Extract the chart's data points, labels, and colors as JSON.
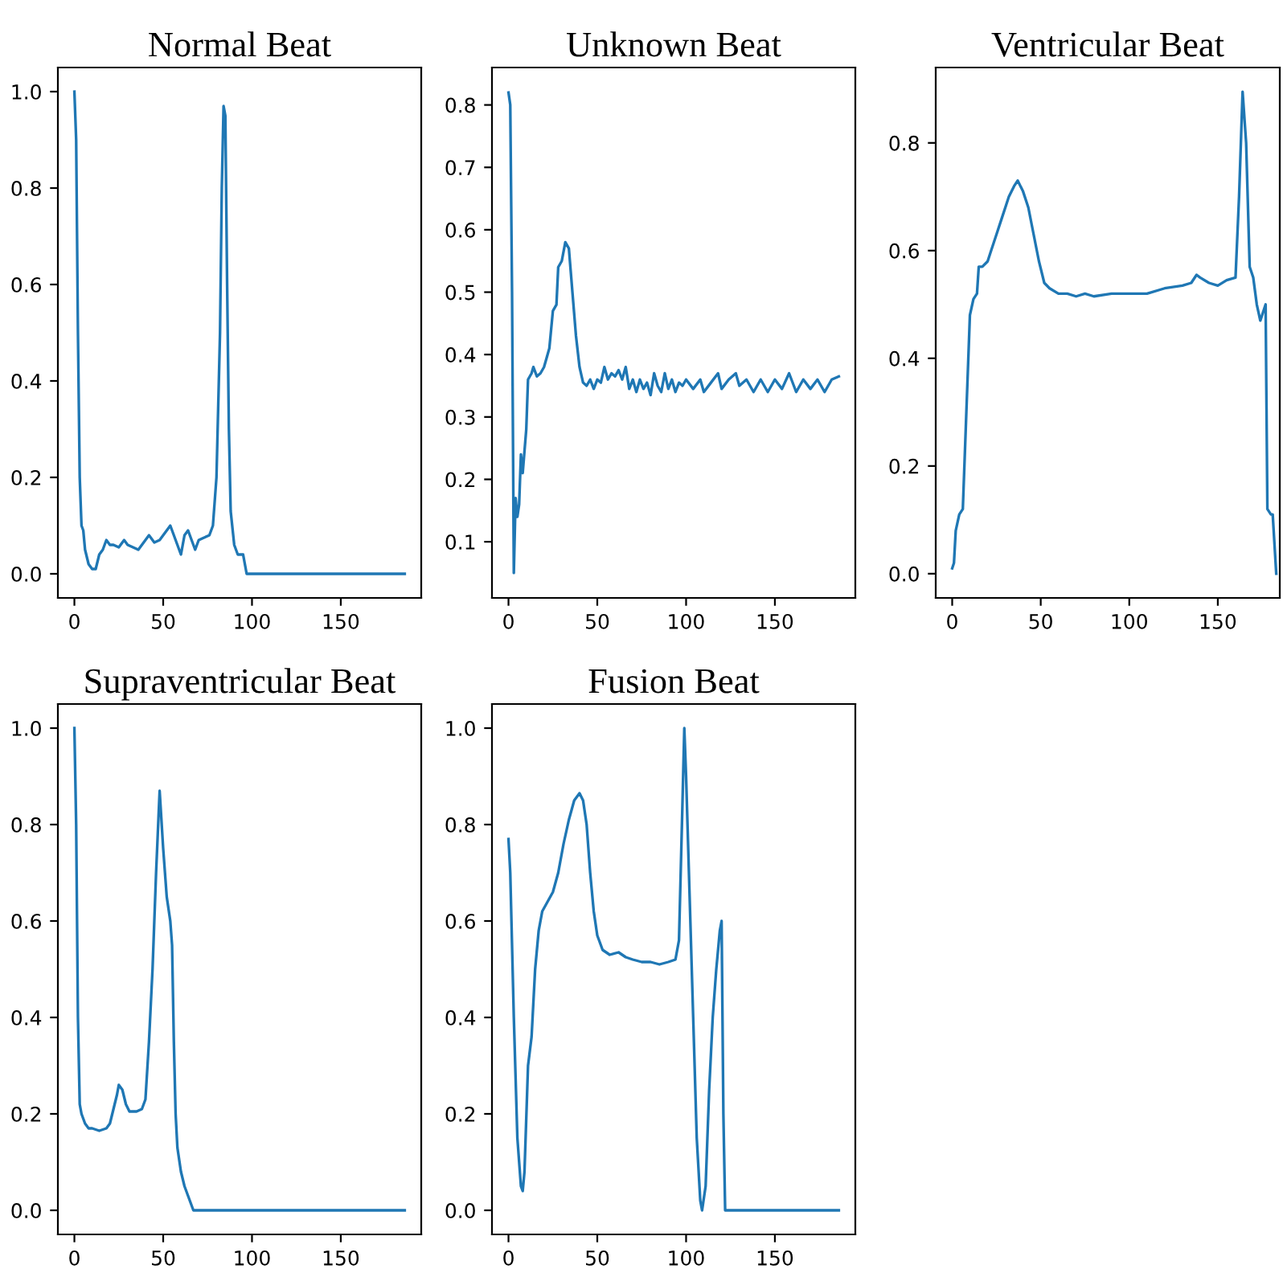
{
  "chart_data": [
    {
      "type": "line",
      "title": "Normal Beat",
      "xlim": [
        -9.3,
        195.3
      ],
      "ylim": [
        -0.05,
        1.05
      ],
      "xticks": [
        0,
        50,
        100,
        150
      ],
      "yticks": [
        {
          "value": 0,
          "label": "0.0"
        },
        {
          "value": 0.2,
          "label": "0.2"
        },
        {
          "value": 0.4,
          "label": "0.4"
        },
        {
          "value": 0.6,
          "label": "0.6"
        },
        {
          "value": 0.8,
          "label": "0.8"
        },
        {
          "value": 1,
          "label": "1.0"
        }
      ],
      "grid": false,
      "series": [
        {
          "color": "#1f77b4",
          "x": [
            0,
            1,
            2,
            3,
            4,
            5,
            6,
            8,
            10,
            12,
            14,
            16,
            18,
            20,
            22,
            25,
            28,
            30,
            33,
            36,
            40,
            42,
            45,
            48,
            52,
            54,
            56,
            58,
            60,
            62,
            64,
            66,
            68,
            70,
            73,
            76,
            78,
            80,
            82,
            83,
            84,
            85,
            86,
            87,
            88,
            90,
            92,
            95,
            97,
            186
          ],
          "values": [
            1.0,
            0.9,
            0.5,
            0.2,
            0.1,
            0.09,
            0.05,
            0.02,
            0.01,
            0.01,
            0.04,
            0.05,
            0.07,
            0.06,
            0.06,
            0.055,
            0.07,
            0.06,
            0.055,
            0.05,
            0.07,
            0.08,
            0.065,
            0.07,
            0.09,
            0.1,
            0.08,
            0.06,
            0.04,
            0.08,
            0.09,
            0.07,
            0.05,
            0.07,
            0.075,
            0.08,
            0.1,
            0.2,
            0.5,
            0.8,
            0.97,
            0.95,
            0.6,
            0.3,
            0.13,
            0.06,
            0.04,
            0.04,
            0.0,
            0.0
          ]
        }
      ]
    },
    {
      "type": "line",
      "title": "Unknown Beat",
      "xlim": [
        -9.3,
        195.3
      ],
      "ylim": [
        0.01,
        0.86
      ],
      "xticks": [
        0,
        50,
        100,
        150
      ],
      "yticks": [
        0.1,
        0.2,
        0.3,
        0.4,
        0.5,
        0.6,
        0.7,
        0.8
      ],
      "grid": false,
      "series": [
        {
          "color": "#1f77b4",
          "x": [
            0,
            1,
            2,
            3,
            4,
            5,
            6,
            7,
            8,
            10,
            11,
            13,
            14,
            16,
            18,
            20,
            22,
            23,
            25,
            27,
            28,
            30,
            32,
            34,
            36,
            38,
            40,
            42,
            44,
            46,
            48,
            50,
            52,
            54,
            56,
            58,
            60,
            62,
            64,
            66,
            68,
            70,
            72,
            74,
            76,
            78,
            80,
            82,
            84,
            86,
            88,
            90,
            92,
            94,
            96,
            98,
            100,
            104,
            108,
            110,
            114,
            118,
            120,
            124,
            128,
            130,
            134,
            138,
            142,
            146,
            150,
            154,
            158,
            162,
            166,
            170,
            174,
            178,
            182,
            186
          ],
          "values": [
            0.82,
            0.8,
            0.5,
            0.05,
            0.17,
            0.14,
            0.16,
            0.24,
            0.21,
            0.28,
            0.36,
            0.37,
            0.38,
            0.365,
            0.37,
            0.38,
            0.4,
            0.41,
            0.47,
            0.48,
            0.54,
            0.55,
            0.58,
            0.57,
            0.5,
            0.43,
            0.38,
            0.355,
            0.35,
            0.36,
            0.345,
            0.36,
            0.355,
            0.38,
            0.36,
            0.37,
            0.365,
            0.375,
            0.36,
            0.38,
            0.345,
            0.36,
            0.34,
            0.36,
            0.345,
            0.355,
            0.335,
            0.37,
            0.35,
            0.34,
            0.37,
            0.345,
            0.36,
            0.34,
            0.355,
            0.35,
            0.36,
            0.345,
            0.36,
            0.34,
            0.355,
            0.37,
            0.345,
            0.36,
            0.37,
            0.35,
            0.36,
            0.34,
            0.36,
            0.34,
            0.36,
            0.345,
            0.37,
            0.34,
            0.36,
            0.345,
            0.36,
            0.34,
            0.36,
            0.365
          ]
        }
      ]
    },
    {
      "type": "line",
      "title": "Ventricular Beat",
      "xlim": [
        -9.3,
        185
      ],
      "ylim": [
        -0.045,
        0.94
      ],
      "xticks": [
        0,
        50,
        100,
        150
      ],
      "yticks": [
        {
          "value": 0,
          "label": "0.0"
        },
        {
          "value": 0.2,
          "label": "0.2"
        },
        {
          "value": 0.4,
          "label": "0.4"
        },
        {
          "value": 0.6,
          "label": "0.6"
        },
        {
          "value": 0.8,
          "label": "0.8"
        }
      ],
      "grid": false,
      "series": [
        {
          "color": "#1f77b4",
          "x": [
            0,
            1,
            2,
            4,
            6,
            8,
            10,
            12,
            14,
            15,
            17,
            20,
            22,
            25,
            28,
            32,
            35,
            37,
            40,
            43,
            46,
            49,
            52,
            55,
            60,
            65,
            70,
            75,
            80,
            90,
            100,
            110,
            120,
            130,
            135,
            138,
            140,
            145,
            150,
            155,
            160,
            162,
            164,
            166,
            168,
            170,
            172,
            174,
            176,
            177,
            178,
            180,
            181,
            183
          ],
          "values": [
            0.01,
            0.02,
            0.08,
            0.11,
            0.12,
            0.3,
            0.48,
            0.51,
            0.52,
            0.57,
            0.57,
            0.58,
            0.6,
            0.63,
            0.66,
            0.7,
            0.72,
            0.73,
            0.71,
            0.68,
            0.63,
            0.58,
            0.54,
            0.53,
            0.52,
            0.52,
            0.515,
            0.52,
            0.515,
            0.52,
            0.52,
            0.52,
            0.53,
            0.535,
            0.54,
            0.555,
            0.55,
            0.54,
            0.535,
            0.545,
            0.55,
            0.7,
            0.895,
            0.8,
            0.57,
            0.55,
            0.5,
            0.47,
            0.49,
            0.5,
            0.12,
            0.11,
            0.11,
            0.0
          ]
        }
      ]
    },
    {
      "type": "line",
      "title": "Supraventricular Beat",
      "xlim": [
        -9.3,
        195.3
      ],
      "ylim": [
        -0.05,
        1.05
      ],
      "xticks": [
        0,
        50,
        100,
        150
      ],
      "yticks": [
        {
          "value": 0,
          "label": "0.0"
        },
        {
          "value": 0.2,
          "label": "0.2"
        },
        {
          "value": 0.4,
          "label": "0.4"
        },
        {
          "value": 0.6,
          "label": "0.6"
        },
        {
          "value": 0.8,
          "label": "0.8"
        },
        {
          "value": 1,
          "label": "1.0"
        }
      ],
      "grid": false,
      "series": [
        {
          "color": "#1f77b4",
          "x": [
            0,
            1,
            2,
            3,
            4,
            6,
            8,
            10,
            14,
            18,
            20,
            22,
            24,
            25,
            27,
            29,
            31,
            35,
            38,
            40,
            42,
            44,
            46,
            48,
            50,
            52,
            54,
            55,
            56,
            57,
            58,
            60,
            62,
            64,
            66,
            67,
            186
          ],
          "values": [
            1.0,
            0.8,
            0.4,
            0.22,
            0.2,
            0.18,
            0.17,
            0.17,
            0.165,
            0.17,
            0.18,
            0.21,
            0.24,
            0.26,
            0.25,
            0.22,
            0.205,
            0.205,
            0.21,
            0.23,
            0.35,
            0.5,
            0.7,
            0.87,
            0.75,
            0.65,
            0.6,
            0.55,
            0.35,
            0.2,
            0.13,
            0.08,
            0.05,
            0.03,
            0.01,
            0.0,
            0.0
          ]
        }
      ]
    },
    {
      "type": "line",
      "title": "Fusion Beat",
      "xlim": [
        -9.3,
        195.3
      ],
      "ylim": [
        -0.05,
        1.05
      ],
      "xticks": [
        0,
        50,
        100,
        150
      ],
      "yticks": [
        {
          "value": 0,
          "label": "0.0"
        },
        {
          "value": 0.2,
          "label": "0.2"
        },
        {
          "value": 0.4,
          "label": "0.4"
        },
        {
          "value": 0.6,
          "label": "0.6"
        },
        {
          "value": 0.8,
          "label": "0.8"
        },
        {
          "value": 1,
          "label": "1.0"
        }
      ],
      "grid": false,
      "series": [
        {
          "color": "#1f77b4",
          "x": [
            0,
            1,
            3,
            5,
            7,
            8,
            9,
            11,
            13,
            15,
            17,
            19,
            22,
            25,
            28,
            31,
            34,
            37,
            40,
            42,
            44,
            46,
            48,
            50,
            53,
            57,
            62,
            66,
            70,
            75,
            80,
            85,
            90,
            94,
            96,
            98,
            99,
            100,
            102,
            104,
            106,
            108,
            109,
            111,
            113,
            115,
            117,
            119,
            120,
            121,
            122,
            186
          ],
          "values": [
            0.77,
            0.7,
            0.4,
            0.15,
            0.05,
            0.04,
            0.08,
            0.3,
            0.36,
            0.5,
            0.58,
            0.62,
            0.64,
            0.66,
            0.7,
            0.76,
            0.81,
            0.85,
            0.865,
            0.85,
            0.8,
            0.7,
            0.62,
            0.57,
            0.54,
            0.53,
            0.535,
            0.525,
            0.52,
            0.515,
            0.515,
            0.51,
            0.515,
            0.52,
            0.56,
            0.85,
            1.0,
            0.9,
            0.65,
            0.4,
            0.15,
            0.02,
            0.0,
            0.05,
            0.25,
            0.4,
            0.5,
            0.58,
            0.6,
            0.2,
            0.0,
            0.0
          ]
        }
      ]
    }
  ]
}
